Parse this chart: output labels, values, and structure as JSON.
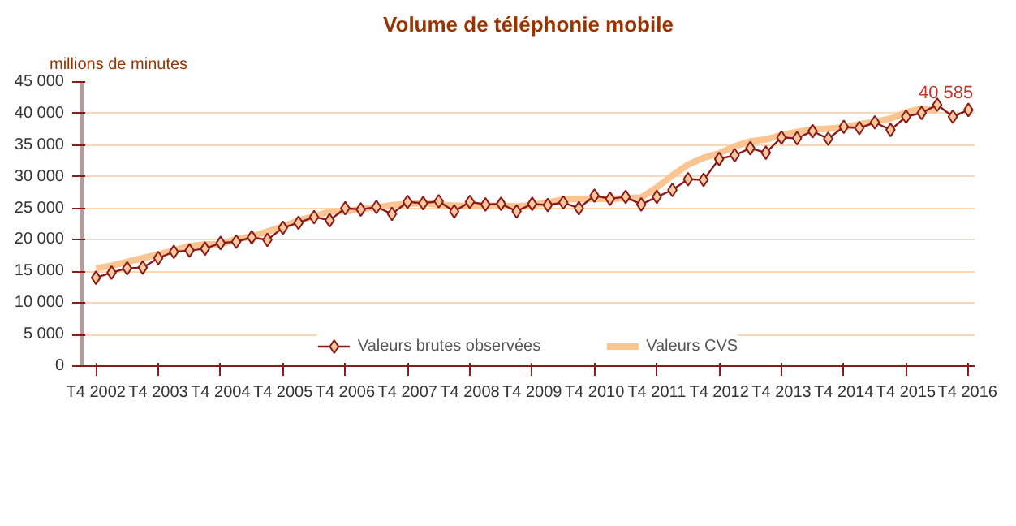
{
  "chart_data": {
    "type": "line",
    "title": "Volume de téléphonie mobile",
    "ylabel": "millions de minutes",
    "categories": [
      "T4 2002",
      null,
      null,
      null,
      "T4 2003",
      null,
      null,
      null,
      "T4 2004",
      null,
      null,
      null,
      "T4 2005",
      null,
      null,
      null,
      "T4 2006",
      null,
      null,
      null,
      "T4 2007",
      null,
      null,
      null,
      "T4 2008",
      null,
      null,
      null,
      "T4 2009",
      null,
      null,
      null,
      "T4 2010",
      null,
      null,
      null,
      "T4 2011",
      null,
      null,
      null,
      "T4 2012",
      null,
      null,
      null,
      "T4 2013",
      null,
      null,
      null,
      "T4 2014",
      null,
      null,
      null,
      "T4 2015",
      null,
      null,
      null,
      "T4 2016"
    ],
    "ylim": [
      0,
      45000
    ],
    "yticks": [
      {
        "value": 0,
        "label": "0"
      },
      {
        "value": 5000,
        "label": "5 000"
      },
      {
        "value": 10000,
        "label": "10 000"
      },
      {
        "value": 15000,
        "label": "15 000"
      },
      {
        "value": 20000,
        "label": "20 000"
      },
      {
        "value": 25000,
        "label": "25 000"
      },
      {
        "value": 30000,
        "label": "30 000"
      },
      {
        "value": 35000,
        "label": "35 000"
      },
      {
        "value": 40000,
        "label": "40 000"
      },
      {
        "value": 45000,
        "label": "45 000"
      }
    ],
    "grid": "y",
    "legend": "bottom",
    "line_style": "solid",
    "series": [
      {
        "name": "Valeurs brutes observées",
        "color": "#8b1a1a",
        "marker": "diamond",
        "values": [
          14000,
          14800,
          15500,
          15600,
          17100,
          18100,
          18300,
          18600,
          19500,
          19700,
          20400,
          20000,
          21900,
          22700,
          23600,
          23100,
          25000,
          24800,
          25200,
          24100,
          26000,
          25800,
          26100,
          24500,
          26000,
          25600,
          25700,
          24500,
          25700,
          25500,
          25900,
          25000,
          27000,
          26500,
          26800,
          25600,
          26800,
          27900,
          29600,
          29500,
          32800,
          33400,
          34500,
          33800,
          36200,
          36100,
          37200,
          36000,
          37900,
          37700,
          38600,
          37400,
          39500,
          40100,
          41400,
          39500,
          40585
        ],
        "value_labels": [
          null,
          null,
          null,
          null,
          null,
          null,
          null,
          null,
          null,
          null,
          null,
          null,
          null,
          null,
          null,
          null,
          null,
          null,
          null,
          null,
          null,
          null,
          null,
          null,
          null,
          null,
          null,
          null,
          null,
          null,
          null,
          null,
          null,
          null,
          null,
          null,
          null,
          null,
          null,
          null,
          null,
          null,
          null,
          null,
          null,
          null,
          null,
          null,
          null,
          null,
          null,
          null,
          null,
          null,
          null,
          null,
          "40 585"
        ]
      },
      {
        "name": "Valeurs CVS",
        "color": "#fbc592",
        "marker": "none",
        "values": [
          15500,
          15900,
          16500,
          17100,
          17700,
          18300,
          19000,
          19300,
          19300,
          20100,
          20500,
          21300,
          22100,
          23100,
          23700,
          24500,
          24500,
          24900,
          25100,
          25500,
          25700,
          25800,
          25600,
          25400,
          25400,
          25400,
          25400,
          25300,
          25500,
          25900,
          26400,
          26500,
          26500,
          26500,
          26600,
          26700,
          28300,
          30200,
          31900,
          33000,
          33700,
          34800,
          35600,
          35900,
          36600,
          37100,
          37500,
          37600,
          37800,
          38300,
          38700,
          39200,
          40200,
          40800,
          40400,
          null,
          null
        ]
      }
    ]
  }
}
